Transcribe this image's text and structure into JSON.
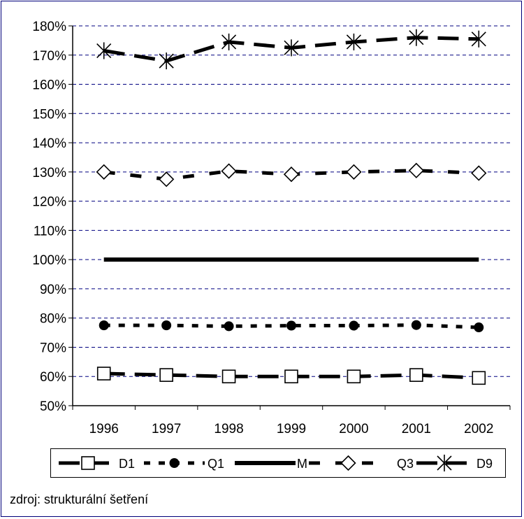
{
  "chart_data": {
    "type": "line",
    "title": "",
    "xlabel": "",
    "ylabel": "",
    "categories": [
      "1996",
      "1997",
      "1998",
      "1999",
      "2000",
      "2001",
      "2002"
    ],
    "y_ticks": [
      "50%",
      "60%",
      "70%",
      "80%",
      "90%",
      "100%",
      "110%",
      "120%",
      "130%",
      "140%",
      "150%",
      "160%",
      "170%",
      "180%"
    ],
    "ylim": [
      50,
      180
    ],
    "grid": true,
    "legend_position": "bottom",
    "series": [
      {
        "name": "D1",
        "marker": "square",
        "line_style": "long-dash",
        "values": [
          61,
          60.5,
          60,
          60,
          60,
          60.5,
          59.5
        ]
      },
      {
        "name": "Q1",
        "marker": "circle",
        "line_style": "dotted",
        "values": [
          77.5,
          77.5,
          77.2,
          77.4,
          77.4,
          77.6,
          76.8
        ]
      },
      {
        "name": "M",
        "marker": "none",
        "line_style": "solid",
        "values": [
          100,
          100,
          100,
          100,
          100,
          100,
          100
        ]
      },
      {
        "name": "Q3",
        "marker": "diamond",
        "line_style": "dashed",
        "values": [
          130,
          127.5,
          130.3,
          129.2,
          130,
          130.5,
          129.6
        ]
      },
      {
        "name": "D9",
        "marker": "star",
        "line_style": "long-dash",
        "values": [
          171.5,
          168,
          174.5,
          172.5,
          174.5,
          176,
          175.5
        ]
      }
    ]
  },
  "footer": {
    "source": "zdroj: strukturální šetření"
  },
  "colors": {
    "line": "#000000",
    "grid": "#000080",
    "frame": "#00007a"
  }
}
